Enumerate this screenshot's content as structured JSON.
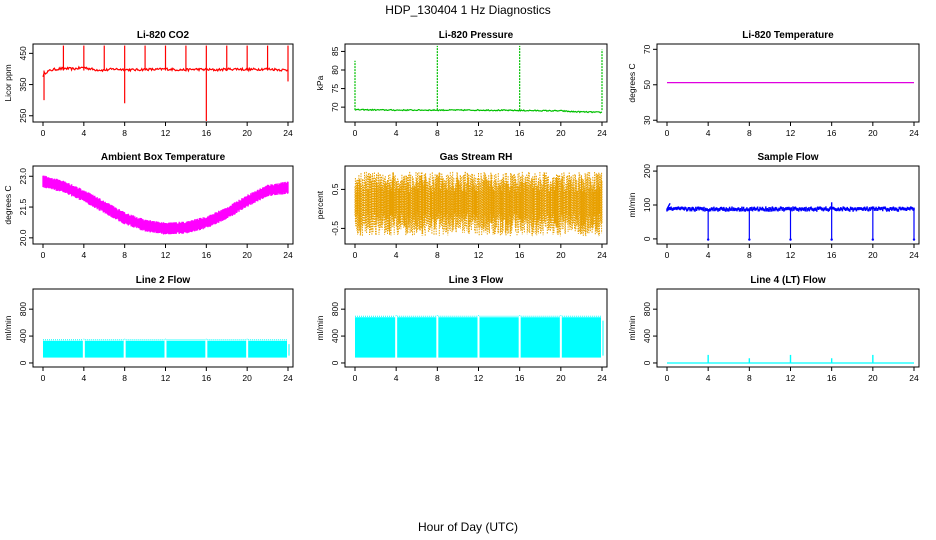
{
  "figure": {
    "title": "HDP_130404  1 Hz Diagnostics",
    "xlabel": "Hour of Day (UTC)"
  },
  "chart_data": [
    {
      "type": "line",
      "title": "Li-820 CO2",
      "ylabel": "Licor ppm",
      "color": "#ff0000",
      "xlim": [
        0,
        24
      ],
      "xticks": [
        0,
        4,
        8,
        12,
        16,
        20,
        24
      ],
      "ylim": [
        230,
        480
      ],
      "yticks": [
        250,
        350,
        450
      ],
      "series": [
        {
          "x": [
            0,
            0.3,
            1,
            2,
            3,
            4,
            5,
            6,
            7,
            8,
            9,
            10,
            11,
            12,
            13,
            14,
            15,
            16,
            17,
            18,
            19,
            20,
            21,
            22,
            23,
            24
          ],
          "y": [
            378,
            390,
            398,
            402,
            400,
            405,
            398,
            396,
            400,
            398,
            397,
            399,
            398,
            400,
            398,
            397,
            399,
            398,
            397,
            399,
            400,
            398,
            399,
            400,
            398,
            396
          ]
        }
      ],
      "spikes": [
        2,
        4,
        6,
        8,
        10,
        12,
        14,
        16,
        18,
        20,
        22,
        24
      ],
      "spike_peak": 475,
      "dips": [
        {
          "x": 0.1,
          "y": 300
        },
        {
          "x": 8,
          "y": 290
        },
        {
          "x": 16,
          "y": 230
        },
        {
          "x": 24,
          "y": 360
        }
      ]
    },
    {
      "type": "line",
      "title": "Li-820 Pressure",
      "ylabel": "kPa",
      "color": "#00c000",
      "xlim": [
        0,
        24
      ],
      "xticks": [
        0,
        4,
        8,
        12,
        16,
        20,
        24
      ],
      "ylim": [
        66,
        87
      ],
      "yticks": [
        70,
        75,
        80,
        85
      ],
      "series": [
        {
          "x": [
            0,
            0.3,
            4,
            8,
            12,
            16,
            20,
            21,
            23.8
          ],
          "y": [
            69.3,
            69.3,
            69.2,
            69.2,
            69.2,
            69.1,
            69.0,
            68.8,
            68.6
          ]
        }
      ],
      "spikes": [
        {
          "x": 0,
          "y": 82.5
        },
        {
          "x": 8,
          "y": 86.5
        },
        {
          "x": 16,
          "y": 86.5
        },
        {
          "x": 24,
          "y": 85.5
        }
      ]
    },
    {
      "type": "line",
      "title": "Li-820 Temperature",
      "ylabel": "degrees C",
      "color": "#e000e0",
      "xlim": [
        0,
        24
      ],
      "xticks": [
        0,
        4,
        8,
        12,
        16,
        20,
        24
      ],
      "ylim": [
        29,
        73
      ],
      "yticks": [
        30,
        50,
        70
      ],
      "series": [
        {
          "x": [
            0,
            24
          ],
          "y": [
            51.2,
            51.2
          ]
        }
      ]
    },
    {
      "type": "line",
      "title": "Ambient Box Temperature",
      "ylabel": "degrees C",
      "color": "#ff00ff",
      "xlim": [
        0,
        24
      ],
      "xticks": [
        0,
        4,
        8,
        12,
        16,
        20,
        24
      ],
      "ylim": [
        19.7,
        23.5
      ],
      "yticks": [
        20.0,
        21.5,
        23.0
      ],
      "series": [
        {
          "x": [
            0,
            2,
            4,
            6,
            8,
            10,
            12,
            14,
            16,
            18,
            20,
            22,
            24
          ],
          "y": [
            22.75,
            22.5,
            22.05,
            21.5,
            20.95,
            20.6,
            20.45,
            20.5,
            20.75,
            21.2,
            21.8,
            22.3,
            22.45
          ]
        }
      ],
      "band_halfwidth": 0.3
    },
    {
      "type": "line",
      "title": "Gas Stream RH",
      "ylabel": "percent",
      "color": "#e8a000",
      "xlim": [
        0,
        24
      ],
      "xticks": [
        0,
        4,
        8,
        12,
        16,
        20,
        24
      ],
      "ylim": [
        -0.9,
        1.1
      ],
      "yticks": [
        -0.5,
        0.5
      ],
      "series": [
        {
          "x": [
            0,
            24
          ],
          "y": [
            0.2,
            0.2
          ]
        }
      ],
      "noise_range": [
        -0.7,
        0.95
      ]
    },
    {
      "type": "line",
      "title": "Sample Flow",
      "ylabel": "ml/min",
      "color": "#0000ff",
      "xlim": [
        0,
        24
      ],
      "xticks": [
        0,
        4,
        8,
        12,
        16,
        20,
        24
      ],
      "ylim": [
        -15,
        215
      ],
      "yticks": [
        0,
        100,
        200
      ],
      "series": [
        {
          "x": [
            0,
            0.2,
            4,
            8,
            12,
            16,
            20,
            24
          ],
          "y": [
            105,
            92,
            88,
            88,
            87,
            88,
            87,
            88
          ]
        }
      ],
      "dips": [
        {
          "x": 4,
          "y": -2
        },
        {
          "x": 8,
          "y": -2
        },
        {
          "x": 12,
          "y": -2
        },
        {
          "x": 16,
          "y": -2
        },
        {
          "x": 20,
          "y": -2
        },
        {
          "x": 24,
          "y": -2
        }
      ],
      "upspikes": [
        {
          "x": 16,
          "y": 108
        }
      ]
    },
    {
      "type": "area",
      "title": "Line 2 Flow",
      "ylabel": "ml/min",
      "color": "#00ffff",
      "xlim": [
        0,
        24
      ],
      "xticks": [
        0,
        4,
        8,
        12,
        16,
        20,
        24
      ],
      "ylim": [
        -60,
        1100
      ],
      "yticks": [
        0,
        400,
        800
      ],
      "band": {
        "low": 80,
        "high": 330
      },
      "gaps": [
        4,
        8,
        12,
        16,
        20
      ],
      "series": [
        {
          "x": [
            0,
            24
          ],
          "y": [
            330,
            330
          ]
        }
      ]
    },
    {
      "type": "area",
      "title": "Line 3 Flow",
      "ylabel": "ml/min",
      "color": "#00ffff",
      "xlim": [
        0,
        24
      ],
      "xticks": [
        0,
        4,
        8,
        12,
        16,
        20,
        24
      ],
      "ylim": [
        -60,
        1100
      ],
      "yticks": [
        0,
        400,
        800
      ],
      "band": {
        "low": 80,
        "high": 680
      },
      "gaps": [
        4,
        8,
        12,
        16,
        20
      ],
      "series": [
        {
          "x": [
            0,
            24
          ],
          "y": [
            680,
            680
          ]
        }
      ]
    },
    {
      "type": "line",
      "title": "Line 4 (LT) Flow",
      "ylabel": "ml/min",
      "color": "#00ffff",
      "xlim": [
        0,
        24
      ],
      "xticks": [
        0,
        4,
        8,
        12,
        16,
        20,
        24
      ],
      "ylim": [
        -60,
        1100
      ],
      "yticks": [
        0,
        400,
        800
      ],
      "series": [
        {
          "x": [
            0,
            24
          ],
          "y": [
            0,
            0
          ]
        }
      ],
      "spikes": [
        {
          "x": 4,
          "y": 120
        },
        {
          "x": 8,
          "y": 70
        },
        {
          "x": 12,
          "y": 120
        },
        {
          "x": 16,
          "y": 70
        },
        {
          "x": 20,
          "y": 120
        }
      ]
    }
  ]
}
